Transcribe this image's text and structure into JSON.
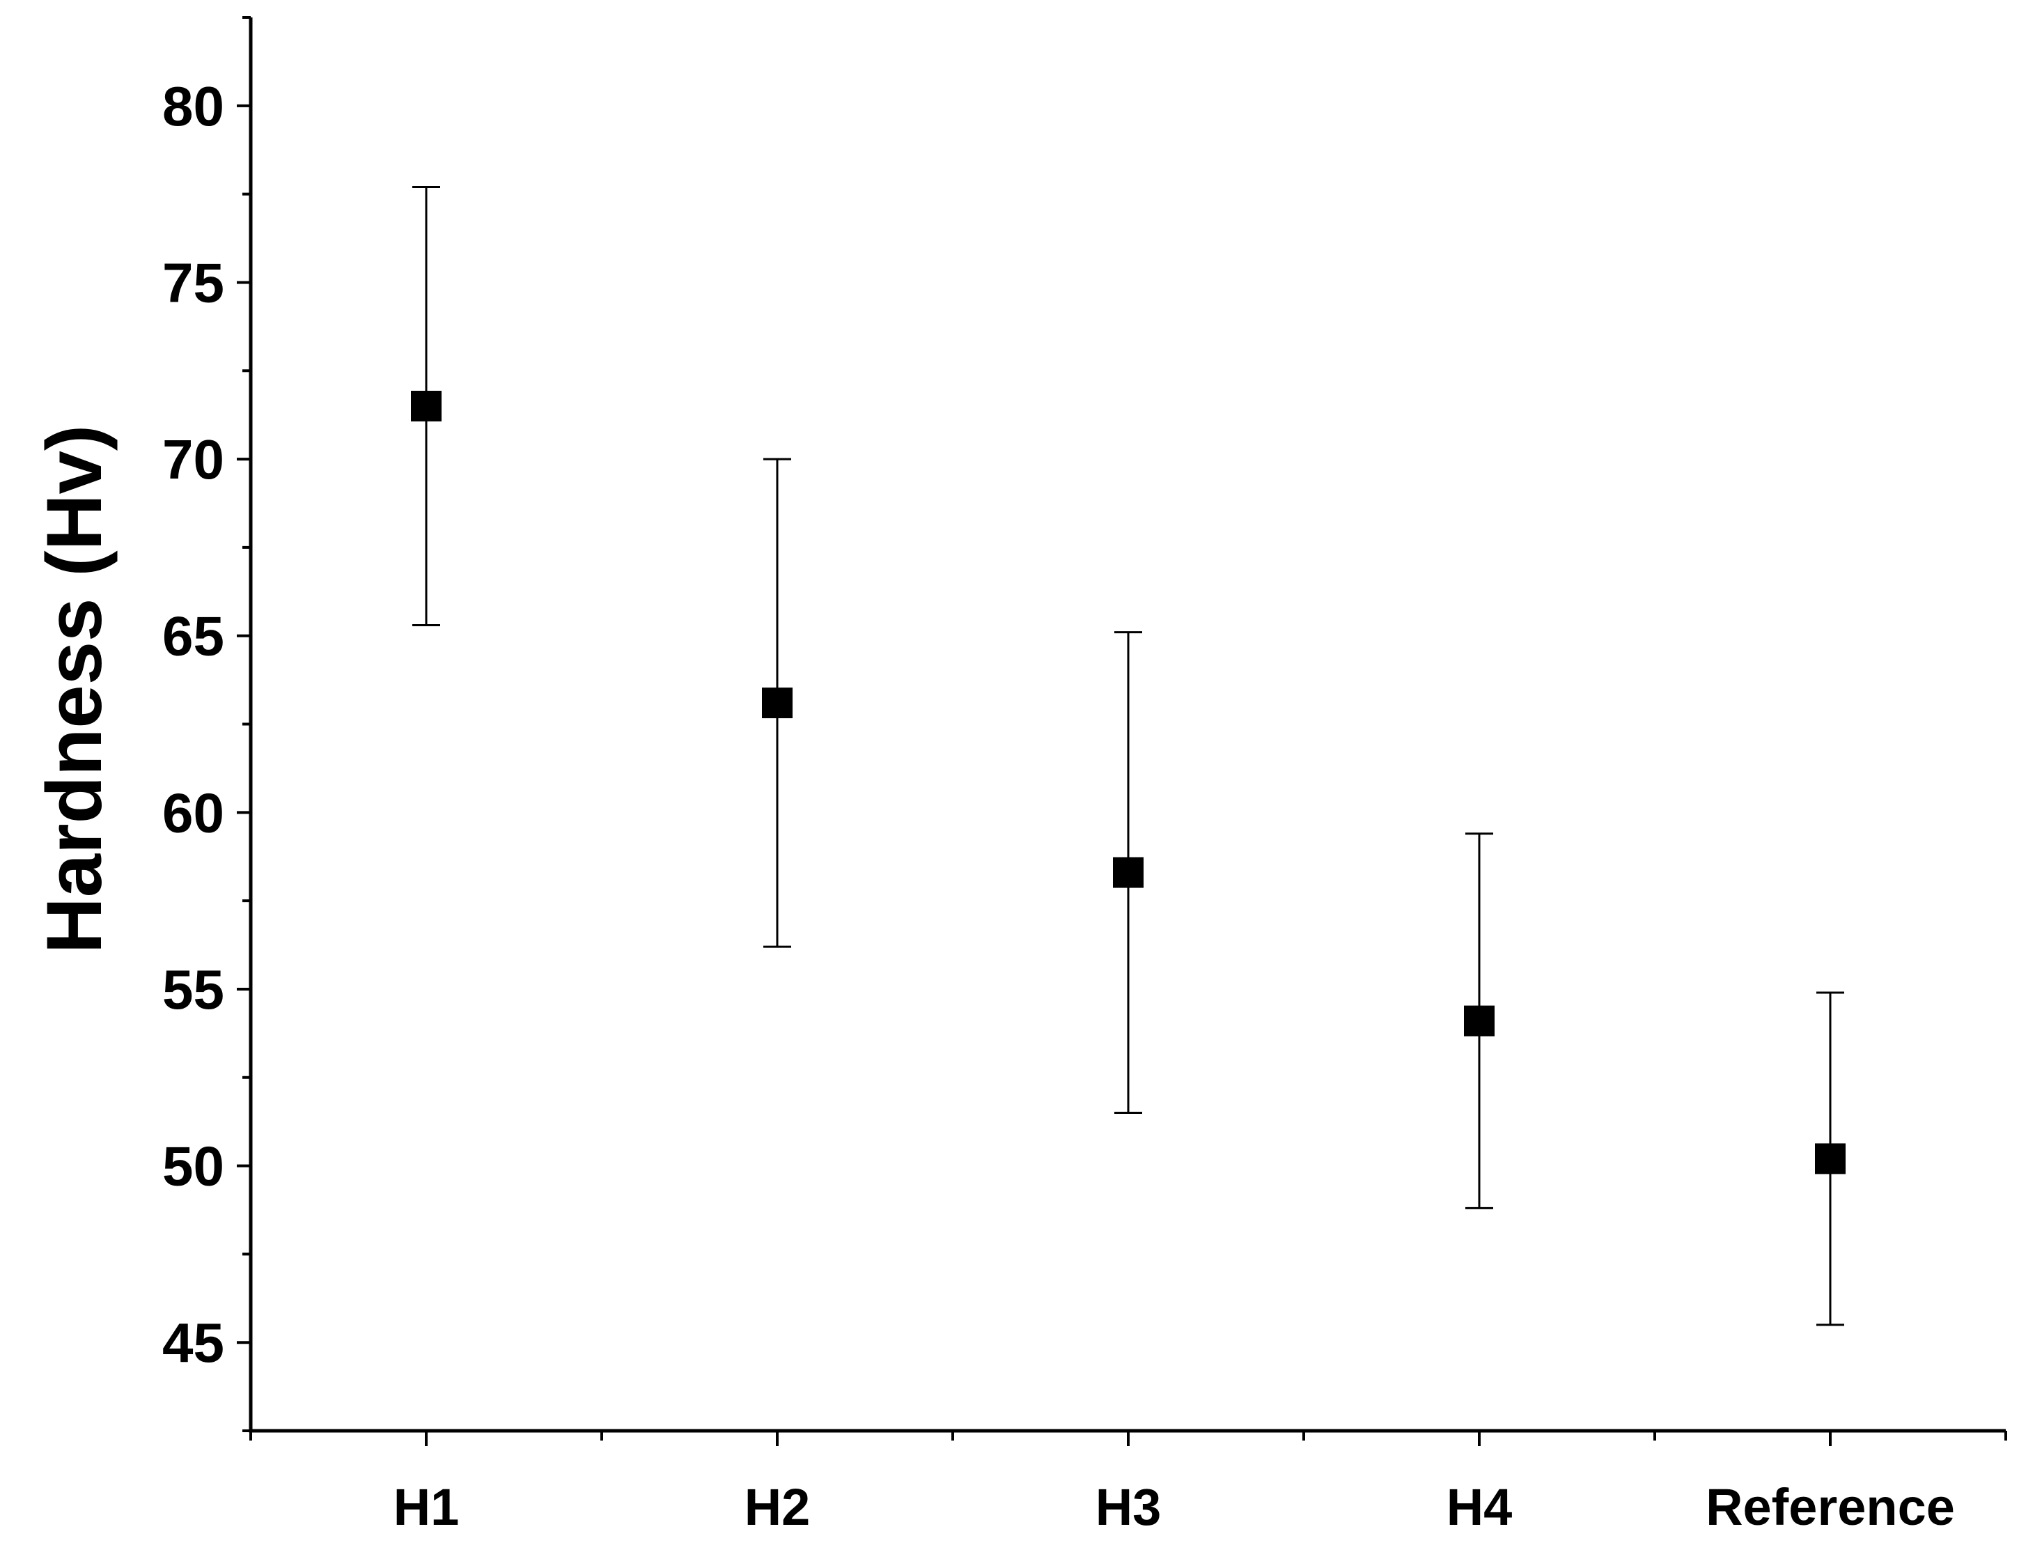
{
  "chart_data": {
    "type": "scatter",
    "title": "",
    "xlabel": "",
    "ylabel": "Hardness (Hv)",
    "categories": [
      "H1",
      "H2",
      "H3",
      "H4",
      "Reference"
    ],
    "series": [
      {
        "values": [
          71.5,
          63.1,
          58.3,
          54.1,
          50.2
        ],
        "error_lower": [
          65.3,
          56.2,
          51.5,
          48.8,
          45.5
        ],
        "error_upper": [
          77.7,
          70.0,
          65.1,
          59.4,
          54.9
        ],
        "marker": "square",
        "color": "#000000"
      }
    ],
    "ylim": [
      42.5,
      82.5
    ],
    "yticks": [
      45,
      50,
      55,
      60,
      65,
      70,
      75,
      80
    ],
    "grid": false,
    "legend": "none"
  }
}
